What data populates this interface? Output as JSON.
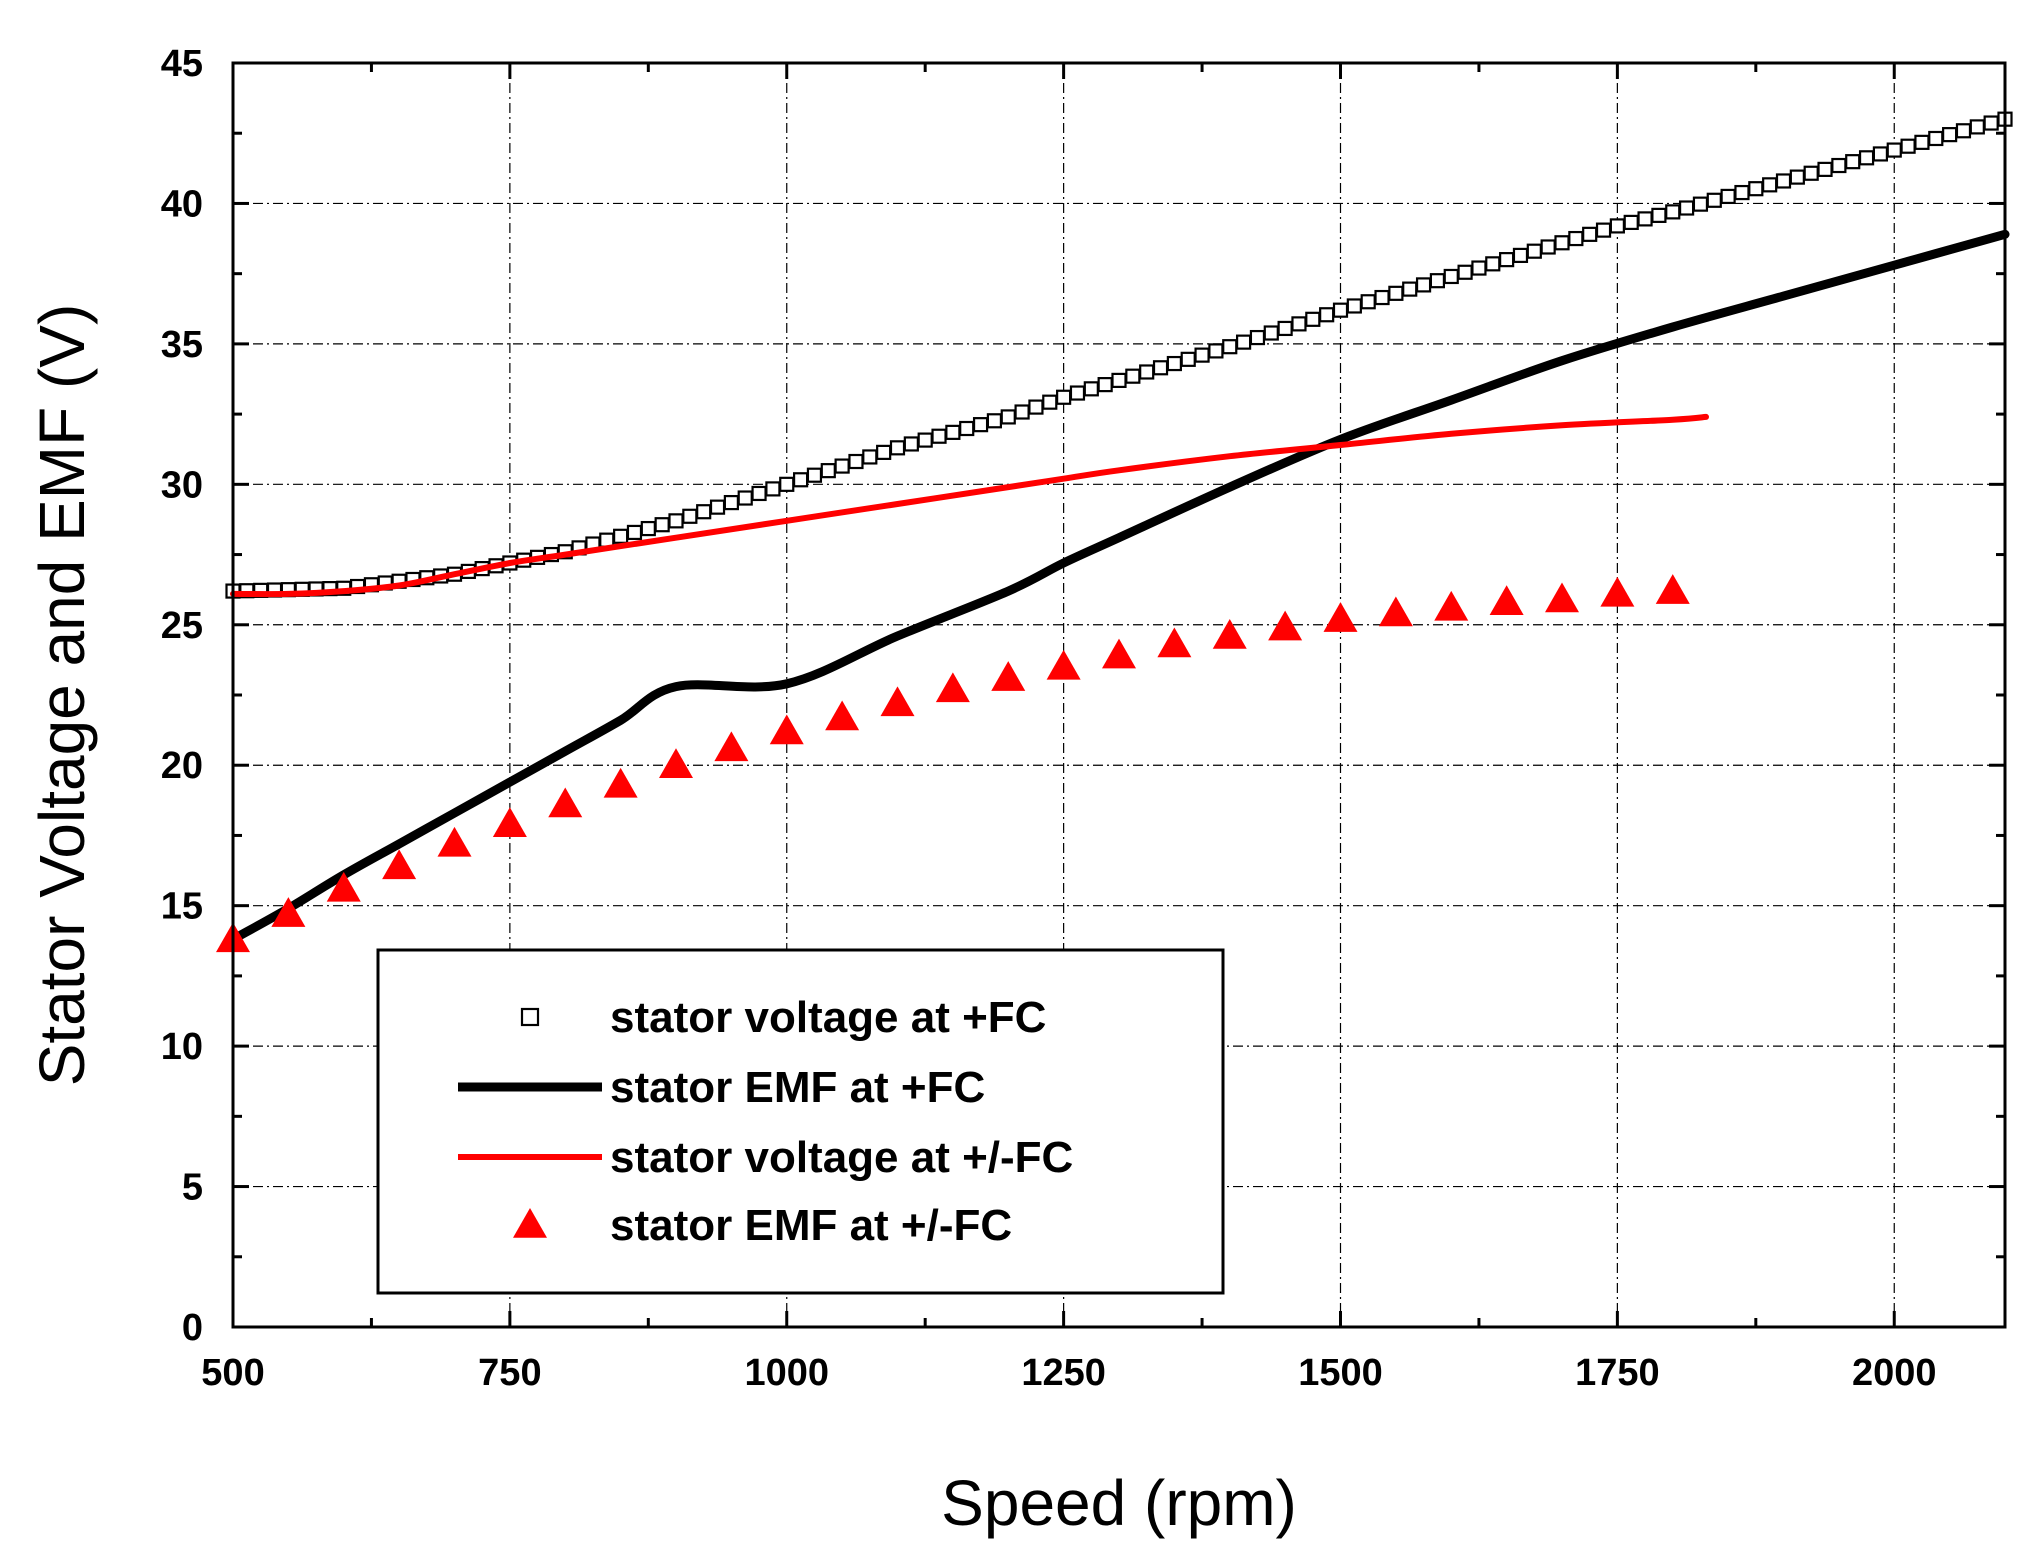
{
  "chart_data": {
    "type": "line",
    "title": "",
    "xlabel": "Speed (rpm)",
    "ylabel": "Stator Voltage and EMF (V)",
    "xlim": [
      500,
      2100
    ],
    "ylim": [
      0,
      45
    ],
    "x_ticks": [
      500,
      750,
      1000,
      1250,
      1500,
      1750,
      2000
    ],
    "y_ticks": [
      0,
      5,
      10,
      15,
      20,
      25,
      30,
      35,
      40,
      45
    ],
    "grid": true,
    "legend_position": "bottom-left",
    "series": [
      {
        "name": "stator voltage at +FC",
        "style": "open-square-markers",
        "color": "#000000",
        "x_start": 500,
        "x_end": 2100,
        "x_step": 12.5,
        "curve_points": [
          [
            500,
            26.2
          ],
          [
            600,
            26.3
          ],
          [
            700,
            26.8
          ],
          [
            800,
            27.6
          ],
          [
            900,
            28.7
          ],
          [
            1000,
            30.0
          ],
          [
            1100,
            31.3
          ],
          [
            1200,
            32.4
          ],
          [
            1250,
            33.1
          ],
          [
            1300,
            33.7
          ],
          [
            1400,
            34.9
          ],
          [
            1500,
            36.2
          ],
          [
            1600,
            37.4
          ],
          [
            1700,
            38.6
          ],
          [
            1750,
            39.2
          ],
          [
            1800,
            39.7
          ],
          [
            1900,
            40.8
          ],
          [
            2000,
            41.9
          ],
          [
            2100,
            43.0
          ]
        ]
      },
      {
        "name": "stator EMF at +FC",
        "style": "thick-line",
        "color": "#000000",
        "points": [
          [
            500,
            13.8
          ],
          [
            550,
            14.9
          ],
          [
            600,
            16.1
          ],
          [
            650,
            17.2
          ],
          [
            700,
            18.3
          ],
          [
            750,
            19.4
          ],
          [
            800,
            20.5
          ],
          [
            850,
            21.6
          ],
          [
            900,
            22.8
          ],
          [
            1000,
            22.9
          ],
          [
            1100,
            24.6
          ],
          [
            1200,
            26.2
          ],
          [
            1250,
            27.2
          ],
          [
            1300,
            28.1
          ],
          [
            1400,
            29.9
          ],
          [
            1500,
            31.6
          ],
          [
            1600,
            33.0
          ],
          [
            1700,
            34.4
          ],
          [
            1800,
            35.6
          ],
          [
            1900,
            36.7
          ],
          [
            2000,
            37.8
          ],
          [
            2100,
            38.9
          ]
        ]
      },
      {
        "name": "stator voltage at +/-FC",
        "style": "line",
        "color": "#ff0000",
        "points": [
          [
            500,
            26.1
          ],
          [
            550,
            26.1
          ],
          [
            600,
            26.2
          ],
          [
            650,
            26.4
          ],
          [
            700,
            26.8
          ],
          [
            750,
            27.2
          ],
          [
            800,
            27.5
          ],
          [
            900,
            28.1
          ],
          [
            1000,
            28.7
          ],
          [
            1100,
            29.3
          ],
          [
            1200,
            29.9
          ],
          [
            1250,
            30.2
          ],
          [
            1300,
            30.5
          ],
          [
            1400,
            31.0
          ],
          [
            1500,
            31.4
          ],
          [
            1600,
            31.8
          ],
          [
            1700,
            32.1
          ],
          [
            1800,
            32.3
          ],
          [
            1830,
            32.4
          ]
        ]
      },
      {
        "name": "stator EMF at +/-FC",
        "style": "filled-triangle-markers",
        "color": "#ff0000",
        "points": [
          [
            500,
            13.8
          ],
          [
            550,
            14.7
          ],
          [
            600,
            15.6
          ],
          [
            650,
            16.4
          ],
          [
            700,
            17.2
          ],
          [
            750,
            17.9
          ],
          [
            800,
            18.6
          ],
          [
            850,
            19.3
          ],
          [
            900,
            20.0
          ],
          [
            950,
            20.6
          ],
          [
            1000,
            21.2
          ],
          [
            1050,
            21.7
          ],
          [
            1100,
            22.2
          ],
          [
            1150,
            22.7
          ],
          [
            1200,
            23.1
          ],
          [
            1250,
            23.5
          ],
          [
            1300,
            23.9
          ],
          [
            1350,
            24.3
          ],
          [
            1400,
            24.6
          ],
          [
            1450,
            24.9
          ],
          [
            1500,
            25.2
          ],
          [
            1550,
            25.4
          ],
          [
            1600,
            25.6
          ],
          [
            1650,
            25.8
          ],
          [
            1700,
            25.9
          ],
          [
            1750,
            26.1
          ],
          [
            1800,
            26.2
          ]
        ]
      }
    ]
  }
}
